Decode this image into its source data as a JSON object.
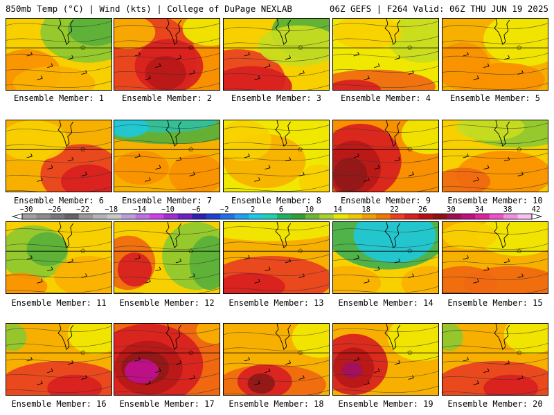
{
  "header": {
    "left": "850mb Temp (°C) | Wind (kts) | College of DuPage NEXLAB",
    "right": "06Z GEFS | F264 Valid: 06Z THU JUN 19 2025"
  },
  "caption_prefix": "Ensemble Member:",
  "members": [
    {
      "label": "Ensemble Member: 1",
      "scheme": "warm-green-ne"
    },
    {
      "label": "Ensemble Member: 2",
      "scheme": "hot-red"
    },
    {
      "label": "Ensemble Member: 3",
      "scheme": "red-green-diagonal"
    },
    {
      "label": "Ensemble Member: 4",
      "scheme": "yellow-red-south"
    },
    {
      "label": "Ensemble Member: 5",
      "scheme": "orange-yellow"
    },
    {
      "label": "Ensemble Member: 6",
      "scheme": "orange-red-se"
    },
    {
      "label": "Ensemble Member: 7",
      "scheme": "cool-north"
    },
    {
      "label": "Ensemble Member: 8",
      "scheme": "yellow-low"
    },
    {
      "label": "Ensemble Member: 9",
      "scheme": "dark-red-west"
    },
    {
      "label": "Ensemble Member: 10",
      "scheme": "green-north-orange"
    },
    {
      "label": "Ensemble Member: 11",
      "scheme": "green-orange"
    },
    {
      "label": "Ensemble Member: 12",
      "scheme": "orange-green-east"
    },
    {
      "label": "Ensemble Member: 13",
      "scheme": "red-south-tight"
    },
    {
      "label": "Ensemble Member: 14",
      "scheme": "cyan-trough"
    },
    {
      "label": "Ensemble Member: 15",
      "scheme": "orange-yellow-red"
    },
    {
      "label": "Ensemble Member: 16",
      "scheme": "orange-red-south"
    },
    {
      "label": "Ensemble Member: 17",
      "scheme": "magenta-hot"
    },
    {
      "label": "Ensemble Member: 18",
      "scheme": "red-south-hot"
    },
    {
      "label": "Ensemble Member: 19",
      "scheme": "red-magenta-west"
    },
    {
      "label": "Ensemble Member: 20",
      "scheme": "orange-red-south"
    }
  ],
  "colorbar": {
    "ticks": [
      "−30",
      "−26",
      "−22",
      "−18",
      "−14",
      "−10",
      "−6",
      "−2",
      "2",
      "6",
      "10",
      "14",
      "18",
      "22",
      "26",
      "30",
      "34",
      "38",
      "42"
    ],
    "colors": [
      "#a0a0a0",
      "#8c8c8c",
      "#787878",
      "#646464",
      "#9a9a9a",
      "#b4b4b4",
      "#c8c8c8",
      "#b8a0d8",
      "#c070e0",
      "#d040e8",
      "#a030d0",
      "#7020c0",
      "#3020b0",
      "#2040d0",
      "#2070e8",
      "#20a0f0",
      "#20c8e8",
      "#20d0b0",
      "#20b060",
      "#30a030",
      "#70b830",
      "#a8d030",
      "#e8e800",
      "#f0c800",
      "#f0a000",
      "#f07800",
      "#e84020",
      "#d82020",
      "#b81010",
      "#901010",
      "#a01050",
      "#c01080",
      "#e020a0",
      "#f050c8",
      "#f090e0",
      "#f8c0f0"
    ]
  }
}
